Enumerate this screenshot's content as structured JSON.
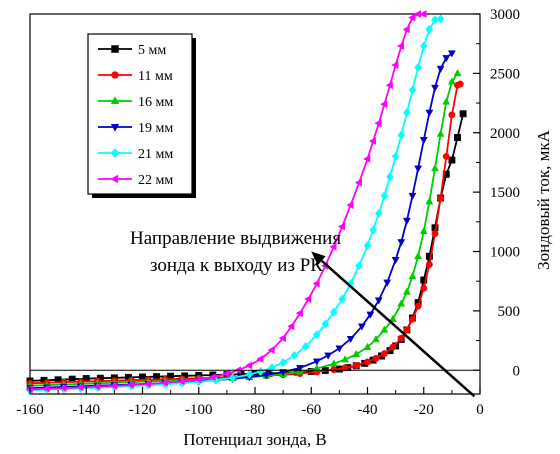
{
  "chart_data": {
    "type": "line",
    "title": "",
    "xlabel": "Потенциал зонда, В",
    "ylabel": "Зондовый ток, мкА",
    "xlim": [
      -160,
      0
    ],
    "ylim": [
      -200,
      3000
    ],
    "y_axis_side": "right",
    "xticks": [
      -160,
      -140,
      -120,
      -100,
      -80,
      -60,
      -40,
      -20,
      0
    ],
    "yticks": [
      0,
      500,
      1000,
      1500,
      2000,
      2500,
      3000
    ],
    "grid": false,
    "legend_position": "top-left",
    "annotation": {
      "lines": [
        "Направление выдвижения",
        "зонда к выходу из РК"
      ],
      "arrow_from": [
        -2,
        -220
      ],
      "arrow_to": [
        -60,
        1000
      ]
    },
    "series": [
      {
        "name": "5 мм",
        "color": "#000000",
        "marker": "square",
        "x": [
          -160,
          -155,
          -150,
          -145,
          -140,
          -135,
          -130,
          -125,
          -120,
          -115,
          -110,
          -105,
          -100,
          -95,
          -90,
          -85,
          -80,
          -75,
          -70,
          -65,
          -60,
          -55,
          -50,
          -47,
          -44,
          -41,
          -38,
          -35,
          -32,
          -30,
          -28,
          -26,
          -24,
          -22,
          -20,
          -18,
          -16,
          -14,
          -12,
          -10,
          -8,
          -6
        ],
        "y": [
          -90,
          -85,
          -80,
          -75,
          -70,
          -67,
          -64,
          -60,
          -57,
          -54,
          -50,
          -47,
          -44,
          -40,
          -37,
          -33,
          -30,
          -26,
          -22,
          -16,
          -10,
          -2,
          10,
          22,
          38,
          58,
          85,
          120,
          165,
          205,
          260,
          340,
          440,
          570,
          760,
          960,
          1200,
          1450,
          1650,
          1770,
          1960,
          2160
        ]
      },
      {
        "name": "11 мм",
        "color": "#ff0000",
        "marker": "circle",
        "x": [
          -160,
          -154,
          -148,
          -142,
          -136,
          -130,
          -124,
          -118,
          -112,
          -106,
          -100,
          -94,
          -88,
          -82,
          -76,
          -70,
          -64,
          -58,
          -52,
          -48,
          -44,
          -40,
          -37,
          -34,
          -31,
          -28,
          -26,
          -24,
          -22,
          -20,
          -18,
          -16,
          -14,
          -12,
          -10,
          -8,
          -7
        ],
        "y": [
          -110,
          -105,
          -100,
          -96,
          -92,
          -88,
          -84,
          -80,
          -76,
          -72,
          -68,
          -63,
          -58,
          -52,
          -46,
          -38,
          -28,
          -14,
          5,
          20,
          40,
          70,
          100,
          140,
          195,
          270,
          340,
          430,
          540,
          690,
          890,
          1150,
          1450,
          1800,
          2150,
          2400,
          2410
        ]
      },
      {
        "name": "16 мм",
        "color": "#00cc00",
        "marker": "triangle-up",
        "x": [
          -160,
          -154,
          -148,
          -142,
          -136,
          -130,
          -124,
          -118,
          -112,
          -106,
          -100,
          -94,
          -88,
          -82,
          -76,
          -70,
          -64,
          -58,
          -52,
          -48,
          -44,
          -40,
          -37,
          -34,
          -31,
          -28,
          -26,
          -24,
          -22,
          -20,
          -18,
          -16,
          -14,
          -12,
          -10,
          -8
        ],
        "y": [
          -130,
          -125,
          -120,
          -115,
          -110,
          -105,
          -100,
          -95,
          -90,
          -85,
          -80,
          -74,
          -67,
          -58,
          -47,
          -32,
          -12,
          15,
          55,
          90,
          135,
          195,
          260,
          340,
          430,
          560,
          660,
          790,
          960,
          1170,
          1420,
          1700,
          1990,
          2260,
          2430,
          2500
        ]
      },
      {
        "name": "19 мм",
        "color": "#0000cc",
        "marker": "triangle-down",
        "x": [
          -160,
          -154,
          -148,
          -142,
          -136,
          -130,
          -124,
          -118,
          -112,
          -106,
          -100,
          -94,
          -88,
          -82,
          -76,
          -70,
          -64,
          -58,
          -54,
          -50,
          -46,
          -42,
          -39,
          -36,
          -33,
          -30,
          -28,
          -26,
          -24,
          -22,
          -20,
          -18,
          -16,
          -14,
          -12,
          -10
        ],
        "y": [
          -150,
          -145,
          -140,
          -135,
          -130,
          -125,
          -120,
          -114,
          -108,
          -101,
          -93,
          -84,
          -72,
          -58,
          -40,
          -15,
          20,
          75,
          125,
          185,
          265,
          370,
          470,
          590,
          740,
          930,
          1080,
          1260,
          1470,
          1700,
          1940,
          2170,
          2380,
          2540,
          2630,
          2670
        ]
      },
      {
        "name": "21 мм",
        "color": "#00ffff",
        "marker": "diamond",
        "x": [
          -160,
          -154,
          -148,
          -142,
          -136,
          -130,
          -124,
          -118,
          -112,
          -106,
          -100,
          -94,
          -88,
          -82,
          -78,
          -74,
          -70,
          -66,
          -62,
          -58,
          -55,
          -52,
          -49,
          -46,
          -43,
          -40,
          -38,
          -36,
          -34,
          -32,
          -30,
          -28,
          -26,
          -24,
          -22,
          -20,
          -18,
          -16,
          -14
        ],
        "y": [
          -170,
          -164,
          -158,
          -152,
          -146,
          -140,
          -133,
          -126,
          -118,
          -109,
          -98,
          -84,
          -64,
          -36,
          -10,
          22,
          65,
          125,
          200,
          300,
          390,
          490,
          600,
          730,
          880,
          1050,
          1180,
          1320,
          1470,
          1630,
          1800,
          1980,
          2170,
          2360,
          2550,
          2730,
          2870,
          2950,
          2960
        ]
      },
      {
        "name": "22 мм",
        "color": "#ff00ff",
        "marker": "triangle-left",
        "x": [
          -160,
          -154,
          -148,
          -142,
          -136,
          -130,
          -124,
          -118,
          -112,
          -106,
          -100,
          -95,
          -90,
          -86,
          -82,
          -78,
          -74,
          -70,
          -67,
          -64,
          -61,
          -58,
          -55,
          -52,
          -49,
          -46,
          -43,
          -40,
          -38,
          -36,
          -34,
          -32,
          -30,
          -28,
          -26,
          -24,
          -22,
          -20
        ],
        "y": [
          -160,
          -155,
          -150,
          -144,
          -138,
          -132,
          -124,
          -116,
          -106,
          -94,
          -78,
          -58,
          -30,
          0,
          40,
          95,
          170,
          270,
          370,
          480,
          600,
          730,
          880,
          1040,
          1210,
          1390,
          1580,
          1780,
          1930,
          2080,
          2240,
          2400,
          2570,
          2730,
          2870,
          2970,
          3000,
          3000
        ]
      }
    ]
  }
}
